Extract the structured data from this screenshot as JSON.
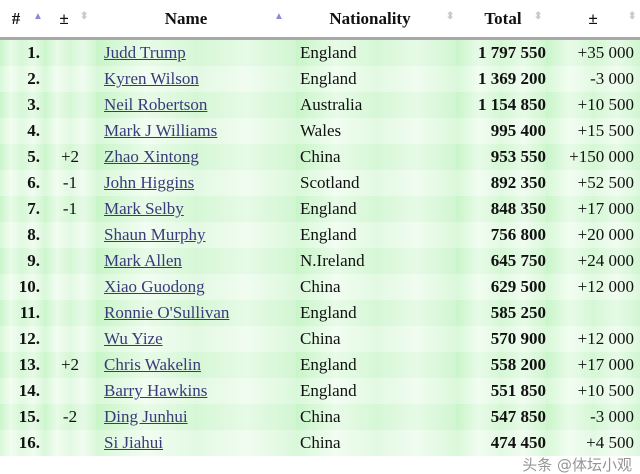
{
  "headers": {
    "rank": "#",
    "change": "±",
    "name": "Name",
    "nationality": "Nationality",
    "total": "Total",
    "diff": "±"
  },
  "rows": [
    {
      "rank": "1.",
      "change": "",
      "name": "Judd Trump",
      "nationality": "England",
      "total": "1 797 550",
      "diff": "+35 000"
    },
    {
      "rank": "2.",
      "change": "",
      "name": "Kyren Wilson",
      "nationality": "England",
      "total": "1 369 200",
      "diff": "-3 000"
    },
    {
      "rank": "3.",
      "change": "",
      "name": "Neil Robertson",
      "nationality": "Australia",
      "total": "1 154 850",
      "diff": "+10 500"
    },
    {
      "rank": "4.",
      "change": "",
      "name": "Mark J Williams",
      "nationality": "Wales",
      "total": "995 400",
      "diff": "+15 500"
    },
    {
      "rank": "5.",
      "change": "+2",
      "name": "Zhao Xintong",
      "nationality": "China",
      "total": "953 550",
      "diff": "+150 000"
    },
    {
      "rank": "6.",
      "change": "-1",
      "name": "John Higgins",
      "nationality": "Scotland",
      "total": "892 350",
      "diff": "+52 500"
    },
    {
      "rank": "7.",
      "change": "-1",
      "name": "Mark Selby",
      "nationality": "England",
      "total": "848 350",
      "diff": "+17 000"
    },
    {
      "rank": "8.",
      "change": "",
      "name": "Shaun Murphy",
      "nationality": "England",
      "total": "756 800",
      "diff": "+20 000"
    },
    {
      "rank": "9.",
      "change": "",
      "name": "Mark Allen",
      "nationality": "N.Ireland",
      "total": "645 750",
      "diff": "+24 000"
    },
    {
      "rank": "10.",
      "change": "",
      "name": "Xiao Guodong",
      "nationality": "China",
      "total": "629 500",
      "diff": "+12 000"
    },
    {
      "rank": "11.",
      "change": "",
      "name": "Ronnie O'Sullivan",
      "nationality": "England",
      "total": "585 250",
      "diff": ""
    },
    {
      "rank": "12.",
      "change": "",
      "name": "Wu Yize",
      "nationality": "China",
      "total": "570 900",
      "diff": "+12 000"
    },
    {
      "rank": "13.",
      "change": "+2",
      "name": "Chris Wakelin",
      "nationality": "England",
      "total": "558 200",
      "diff": "+17 000"
    },
    {
      "rank": "14.",
      "change": "",
      "name": "Barry Hawkins",
      "nationality": "England",
      "total": "551 850",
      "diff": "+10 500"
    },
    {
      "rank": "15.",
      "change": "-2",
      "name": "Ding Junhui",
      "nationality": "China",
      "total": "547 850",
      "diff": "-3 000"
    },
    {
      "rank": "16.",
      "change": "",
      "name": "Si Jiahui",
      "nationality": "China",
      "total": "474 450",
      "diff": "+4 500"
    }
  ],
  "watermark": "头条 @体坛小观"
}
